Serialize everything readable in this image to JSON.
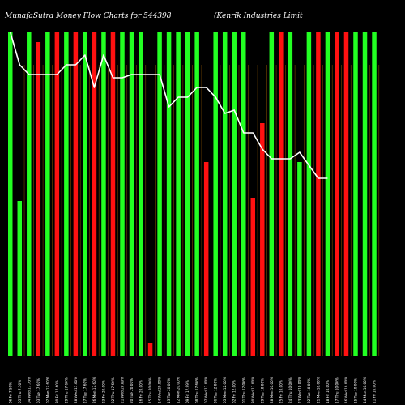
{
  "chart_data": {
    "type": "bar",
    "title": "MunafaSutra  Money Flow  Charts for 544398",
    "subtitle": "(Kenrik Industries Limit",
    "colors": {
      "up": "#22ff22",
      "down": "#ff1111",
      "line": "#ffffff",
      "grid": "#7a4a00",
      "background": "#000000"
    },
    "categories": [
      "06 Fri 7.50%",
      "05 Thu 7.50%",
      "04 Wed 17.73%",
      "03 Tue 17.60%",
      "02 Mon 17.60%",
      "30 Fri 17.60%",
      "29 Thu 17.60%",
      "28 Wed 17.60%",
      "27 Tue 17.60%",
      "26 Mon 17.60%",
      "23 Fri 20.00%",
      "22 Thu 17.60%",
      "21 Wed 20.00%",
      "20 Tue 20.00%",
      "16 Fri 20.00%",
      "15 Thu 20.00%",
      "14 Wed 20.00%",
      "13 Tue 20.00%",
      "12 Mon 20.00%",
      "09 Fri 17.99%",
      "08 Thu 17.60%",
      "07 Wed 12.00%",
      "06 Tue 12.00%",
      "05 Mon 12.00%",
      "02 Fri 12.00%",
      "01 Thu 12.00%",
      "30 Wed 12.00%",
      "29 Tue 10.00%",
      "28 Mon 10.00%",
      "25 Fri 10.00%",
      "24 Thu 10.00%",
      "23 Wed 10.00%",
      "22 Tue 10.00%",
      "21 Mon 10.00%",
      "18 Fri 10.00%",
      "17 Thu 10.00%",
      "16 Wed 10.00%",
      "15 Tue 10.00%",
      "14 Mon 10.00%",
      "11 Fri 10.00%"
    ],
    "bar_colors": [
      "green",
      "green",
      "green",
      "red",
      "green",
      "red",
      "green",
      "red",
      "green",
      "red",
      "green",
      "red",
      "green",
      "green",
      "green",
      "red",
      "green",
      "green",
      "green",
      "green",
      "green",
      "red",
      "green",
      "green",
      "green",
      "green",
      "red",
      "red",
      "green",
      "red",
      "green",
      "green",
      "green",
      "red",
      "green",
      "red",
      "red",
      "green",
      "green",
      "green"
    ],
    "values": [
      100,
      48,
      100,
      97,
      100,
      100,
      100,
      100,
      100,
      100,
      100,
      100,
      100,
      100,
      100,
      4,
      100,
      100,
      100,
      100,
      100,
      60,
      100,
      100,
      100,
      100,
      49,
      72,
      100,
      100,
      100,
      60,
      100,
      100,
      100,
      100,
      100,
      100,
      100,
      100
    ],
    "overlay_values": [
      100,
      90,
      87,
      87,
      87,
      87,
      90,
      90,
      93,
      83,
      93,
      86,
      86,
      87,
      87,
      87,
      87,
      77,
      80,
      80,
      83,
      83,
      80,
      75,
      76,
      69,
      69,
      64,
      61,
      61,
      61,
      63,
      59,
      55,
      55
    ],
    "overlay_name": "",
    "axes": {
      "ylim": [
        0,
        100
      ],
      "grid": "vertical"
    }
  }
}
